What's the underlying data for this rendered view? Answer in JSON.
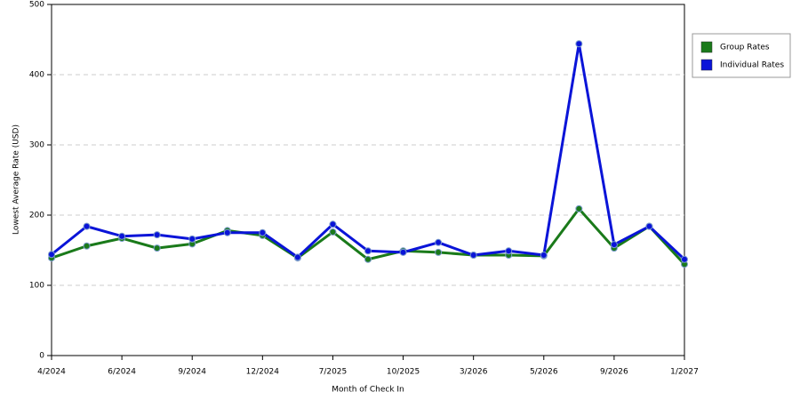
{
  "chart_data": {
    "type": "line",
    "x_label": "Month of Check In",
    "y_label": "Lowest Average Rate (USD)",
    "categories": [
      "4/2024",
      null,
      "6/2024",
      null,
      "9/2024",
      null,
      "12/2024",
      null,
      "7/2025",
      null,
      "10/2025",
      null,
      "3/2026",
      null,
      "5/2026",
      null,
      "9/2026",
      null,
      "1/2027"
    ],
    "series": [
      {
        "name": "Group Rates",
        "color": "#1a7a1a",
        "values": [
          139,
          156,
          167,
          153,
          159,
          178,
          171,
          139,
          176,
          137,
          149,
          147,
          143,
          143,
          142,
          209,
          153,
          184,
          130
        ]
      },
      {
        "name": "Individual Rates",
        "color": "#0a14d8",
        "values": [
          144,
          184,
          170,
          172,
          166,
          175,
          175,
          140,
          187,
          149,
          147,
          161,
          143,
          149,
          143,
          444,
          158,
          184,
          137
        ]
      }
    ],
    "ylim": [
      0,
      500
    ],
    "yticks": [
      0,
      100,
      200,
      300,
      400,
      500
    ],
    "grid": true,
    "legend": "right"
  }
}
